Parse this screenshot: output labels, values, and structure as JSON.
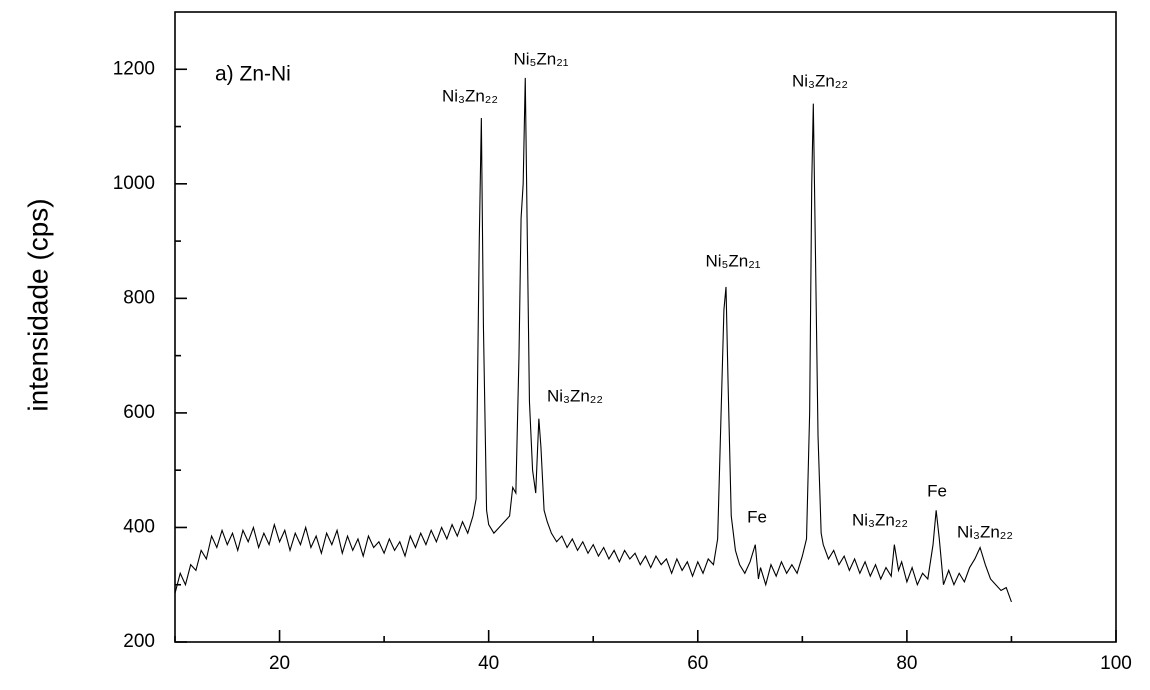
{
  "chart_data": {
    "type": "line",
    "y_label": "intensidade (cps)",
    "panel_label": "a) Zn-Ni",
    "x": [
      10,
      10.5,
      11,
      11.5,
      12,
      12.5,
      13,
      13.5,
      14,
      14.5,
      15,
      15.5,
      16,
      16.5,
      17,
      17.5,
      18,
      18.5,
      19,
      19.5,
      20,
      20.5,
      21,
      21.5,
      22,
      22.5,
      23,
      23.5,
      24,
      24.5,
      25,
      25.5,
      26,
      26.5,
      27,
      27.5,
      28,
      28.5,
      29,
      29.5,
      30,
      30.5,
      31,
      31.5,
      32,
      32.5,
      33,
      33.5,
      34,
      34.5,
      35,
      35.5,
      36,
      36.5,
      37,
      37.5,
      38,
      38.5,
      38.8,
      39.1,
      39.3,
      39.5,
      39.8,
      40,
      40.5,
      41,
      41.5,
      42,
      42.3,
      42.6,
      42.9,
      43.1,
      43.3,
      43.5,
      43.7,
      43.9,
      44.2,
      44.5,
      44.8,
      45,
      45.3,
      45.6,
      46,
      46.5,
      47,
      47.5,
      48,
      48.5,
      49,
      49.5,
      50,
      50.5,
      51,
      51.5,
      52,
      52.5,
      53,
      53.5,
      54,
      54.5,
      55,
      55.5,
      56,
      56.5,
      57,
      57.5,
      58,
      58.5,
      59,
      59.5,
      60,
      60.5,
      61,
      61.5,
      61.9,
      62.2,
      62.5,
      62.7,
      62.9,
      63.2,
      63.6,
      64,
      64.5,
      65,
      65.5,
      65.8,
      66,
      66.5,
      67,
      67.5,
      68,
      68.5,
      69,
      69.5,
      70,
      70.4,
      70.7,
      70.9,
      71.05,
      71.2,
      71.5,
      71.8,
      72,
      72.5,
      73,
      73.5,
      74,
      74.5,
      75,
      75.5,
      76,
      76.5,
      77,
      77.5,
      78,
      78.5,
      78.8,
      79.2,
      79.5,
      80,
      80.5,
      81,
      81.5,
      82,
      82.5,
      82.8,
      83.1,
      83.5,
      84,
      84.5,
      85,
      85.5,
      86,
      86.5,
      87,
      87.5,
      88,
      88.5,
      89,
      89.5,
      90
    ],
    "series": [
      {
        "color": "#000000",
        "values": [
          285,
          320,
          300,
          335,
          325,
          360,
          345,
          385,
          365,
          395,
          370,
          390,
          360,
          395,
          375,
          400,
          365,
          390,
          370,
          405,
          375,
          395,
          360,
          390,
          370,
          400,
          365,
          385,
          355,
          390,
          370,
          395,
          355,
          385,
          360,
          380,
          350,
          385,
          365,
          375,
          355,
          380,
          360,
          375,
          350,
          385,
          365,
          390,
          370,
          395,
          375,
          400,
          380,
          405,
          385,
          410,
          390,
          420,
          450,
          900,
          1115,
          750,
          430,
          405,
          390,
          400,
          410,
          420,
          470,
          460,
          700,
          940,
          1000,
          1185,
          900,
          620,
          500,
          460,
          590,
          540,
          430,
          410,
          390,
          375,
          385,
          365,
          380,
          360,
          375,
          355,
          370,
          350,
          365,
          345,
          360,
          340,
          360,
          345,
          355,
          335,
          350,
          330,
          350,
          335,
          345,
          320,
          345,
          325,
          340,
          315,
          340,
          320,
          345,
          335,
          380,
          580,
          780,
          820,
          650,
          420,
          360,
          335,
          320,
          340,
          370,
          310,
          330,
          300,
          335,
          315,
          340,
          320,
          335,
          320,
          350,
          380,
          600,
          1000,
          1140,
          950,
          560,
          390,
          370,
          345,
          360,
          335,
          350,
          325,
          345,
          320,
          340,
          315,
          335,
          310,
          330,
          315,
          370,
          325,
          340,
          305,
          330,
          300,
          320,
          310,
          370,
          430,
          380,
          300,
          325,
          300,
          320,
          305,
          330,
          345,
          365,
          335,
          310,
          300,
          290,
          295,
          270
        ]
      }
    ],
    "xlim": [
      10,
      100
    ],
    "xticks": [
      20,
      40,
      60,
      80,
      100
    ],
    "xminorticks": [
      10,
      30,
      50,
      70,
      90
    ],
    "ylim": [
      200,
      1300
    ],
    "yticks": [
      200,
      400,
      600,
      800,
      1000,
      1200
    ],
    "yminorticks": [
      300,
      500,
      700,
      900,
      1100
    ],
    "grid": false,
    "annotations": [
      "Ni₃Zn₂₂",
      "Ni₅Zn₂₁",
      "Ni₃Zn₂₂",
      "Ni₅Zn₂₁",
      "Ni₃Zn₂₂",
      "Fe",
      "Ni₃Zn₂₂",
      "Fe",
      "Ni₃Zn₂₂"
    ]
  }
}
